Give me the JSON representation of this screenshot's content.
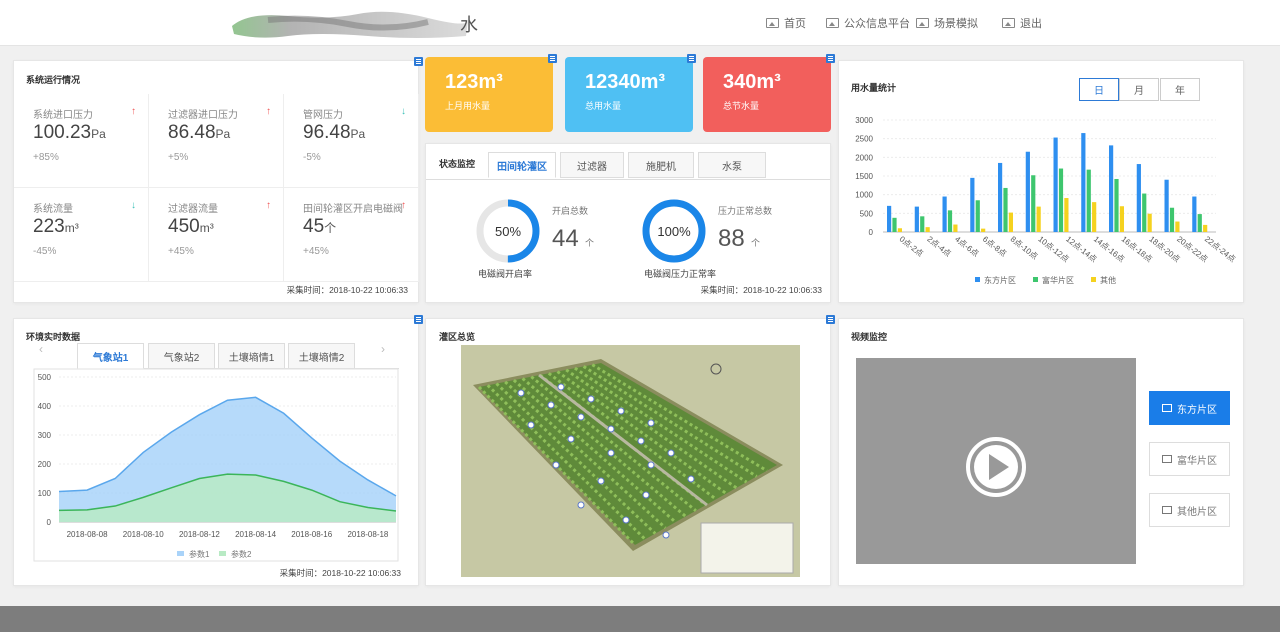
{
  "header": {
    "logo_char": "水",
    "nav": [
      {
        "label": "首页",
        "icon": "image-icon"
      },
      {
        "label": "公众信息平台",
        "icon": "image-icon"
      },
      {
        "label": "场景模拟",
        "icon": "image-icon"
      },
      {
        "label": "退出",
        "icon": "image-icon"
      }
    ]
  },
  "system": {
    "title": "系统运行情况",
    "cells": [
      {
        "label": "系统进口压力",
        "value": "100.23",
        "unit": "Pa",
        "change": "+85%",
        "trend": "up"
      },
      {
        "label": "过滤器进口压力",
        "value": "86.48",
        "unit": "Pa",
        "change": "+5%",
        "trend": "up"
      },
      {
        "label": "管网压力",
        "value": "96.48",
        "unit": "Pa",
        "change": "-5%",
        "trend": "down"
      },
      {
        "label": "系统流量",
        "value": "223",
        "unit": "m³",
        "change": "-45%",
        "trend": "down"
      },
      {
        "label": "过滤器流量",
        "value": "450",
        "unit": "m³",
        "change": "+45%",
        "trend": "up"
      },
      {
        "label": "田间轮灌区开启电磁阀",
        "value": "45",
        "unit": "个",
        "change": "+45%",
        "trend": "up"
      }
    ],
    "timestamp": "采集时间：2018-10-22 10:06:33"
  },
  "stats": [
    {
      "value": "123m³",
      "label": "上月用水量",
      "color": "#fbbd36"
    },
    {
      "value": "12340m³",
      "label": "总用水量",
      "color": "#4fc0f3"
    },
    {
      "value": "340m³",
      "label": "总节水量",
      "color": "#f25f5c"
    }
  ],
  "status": {
    "title": "状态监控",
    "tabs": [
      "田间轮灌区",
      "过滤器",
      "施肥机",
      "水泵"
    ],
    "active_tab": 0,
    "gauges": [
      {
        "percent": 50,
        "percent_label": "50%",
        "label": "开启总数",
        "value": "44",
        "unit": "个",
        "caption": "电磁阀开启率"
      },
      {
        "percent": 100,
        "percent_label": "100%",
        "label": "压力正常总数",
        "value": "88",
        "unit": "个",
        "caption": "电磁阀压力正常率"
      }
    ],
    "timestamp": "采集时间：2018-10-22 10:06:33"
  },
  "water": {
    "title": "用水量统计",
    "periods": [
      "日",
      "月",
      "年"
    ],
    "active_period": 0
  },
  "water_chart": {
    "type": "bar",
    "categories": [
      "0点-2点",
      "2点-4点",
      "4点-6点",
      "6点-8点",
      "8点-10点",
      "10点-12点",
      "12点-14点",
      "14点-16点",
      "16点-18点",
      "18点-20点",
      "20点-22点",
      "22点-24点"
    ],
    "series": [
      {
        "name": "东方片区",
        "color": "#2e8ff0",
        "values": [
          700,
          680,
          950,
          1450,
          1850,
          2150,
          2530,
          2650,
          2320,
          1820,
          1400,
          950
        ]
      },
      {
        "name": "富华片区",
        "color": "#3ec66e",
        "values": [
          380,
          420,
          580,
          850,
          1180,
          1520,
          1700,
          1670,
          1420,
          1030,
          650,
          480
        ]
      },
      {
        "name": "其他",
        "color": "#f5d21f",
        "values": [
          100,
          130,
          200,
          90,
          520,
          680,
          910,
          800,
          690,
          490,
          280,
          190
        ]
      }
    ],
    "ylim": [
      0,
      3000
    ],
    "yticks": [
      0,
      500,
      1000,
      1500,
      2000,
      2500,
      3000
    ]
  },
  "env": {
    "title": "环境实时数据",
    "tabs": [
      "气象站1",
      "气象站2",
      "土壤墒情1",
      "土壤墒情2"
    ],
    "active_tab": 0,
    "timestamp": "采集时间：2018-10-22 10:06:33"
  },
  "env_chart": {
    "type": "area",
    "x": [
      "2018-08-07",
      "2018-08-08",
      "2018-08-09",
      "2018-08-10",
      "2018-08-11",
      "2018-08-12",
      "2018-08-13",
      "2018-08-14",
      "2018-08-15",
      "2018-08-16",
      "2018-08-17",
      "2018-08-18",
      "2018-08-19"
    ],
    "xticks": [
      "2018-08-08",
      "2018-08-10",
      "2018-08-12",
      "2018-08-14",
      "2018-08-16",
      "2018-08-18"
    ],
    "series": [
      {
        "name": "参数1",
        "color": "#a9d3f9",
        "line": "#5aa7ec",
        "values": [
          105,
          110,
          150,
          240,
          310,
          370,
          420,
          430,
          375,
          290,
          210,
          145,
          90
        ]
      },
      {
        "name": "参数2",
        "color": "#b8eac4",
        "line": "#3bb55a",
        "values": [
          40,
          42,
          55,
          85,
          118,
          150,
          165,
          162,
          140,
          110,
          70,
          50,
          38
        ]
      }
    ],
    "ylim": [
      0,
      500
    ],
    "yticks": [
      0,
      100,
      200,
      300,
      400,
      500
    ]
  },
  "irrig": {
    "title": "灌区总览",
    "legend": [
      "远程阀组",
      "远程控阀",
      "阀门",
      "阀门",
      "阀门",
      "阀门开启状态",
      "阀门压力异常",
      "阀门正常",
      "阀门正常"
    ]
  },
  "video": {
    "title": "视频监控",
    "buttons": [
      "东方片区",
      "富华片区",
      "其他片区"
    ],
    "active": 0
  }
}
